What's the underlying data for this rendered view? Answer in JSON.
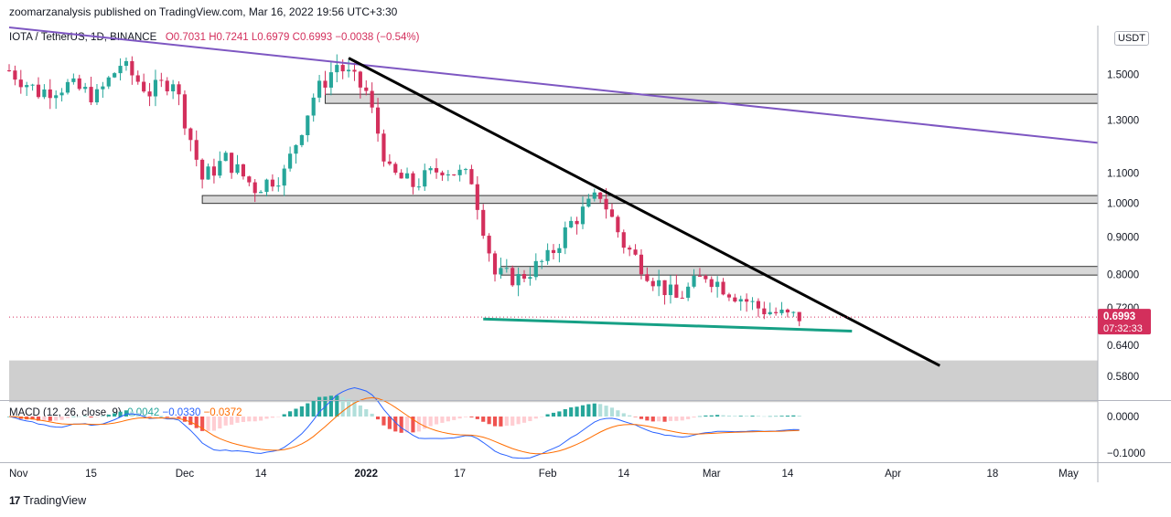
{
  "header": {
    "publisher_line": "zoomarzanalysis published on TradingView.com, Mar 16, 2022 19:56 UTC+3:30"
  },
  "legend": {
    "symbol": "IOTA / TetherUS, 1D, BINANCE",
    "open": "O0.7031",
    "high": "H0.7241",
    "low": "L0.6979",
    "close": "C0.6993",
    "change": "−0.0038 (−0.54%)"
  },
  "price_axis": {
    "currency": "USDT",
    "last_price": "0.6993",
    "countdown": "07:32:33"
  },
  "macd": {
    "title": "MACD (12, 26, close, 9)",
    "hist": "0.0042",
    "macd": "−0.0330",
    "signal": "−0.0372"
  },
  "footer": {
    "brand": "TradingView",
    "logo": "tradingview-logo"
  },
  "colors": {
    "up": "#26a69a",
    "down": "#d32f5c",
    "trendline": "#7e57c2",
    "downtrend": "#000000",
    "support": "#16a085",
    "macd_line": "#2962ff",
    "signal_line": "#ff6d00"
  },
  "chart_data": {
    "type": "candlestick",
    "title": "IOTA / TetherUS, 1D, BINANCE",
    "y_scale": "log",
    "ylim": [
      0.54,
      1.75
    ],
    "x_range": [
      "2021-11-01",
      "2022-05-06"
    ],
    "x_ticks": [
      "Nov",
      "15",
      "Dec",
      "14",
      "2022",
      "17",
      "Feb",
      "14",
      "Mar",
      "14",
      "Apr",
      "18",
      "May"
    ],
    "y_ticks": [
      "1.5000",
      "1.3000",
      "1.1000",
      "1.0000",
      "0.9000",
      "0.8000",
      "0.7200",
      "0.6400",
      "0.5800"
    ],
    "series": [
      {
        "name": "IOTA/USDT close",
        "x": [
          "2021-11-01",
          "2021-11-06",
          "2021-11-11",
          "2021-11-16",
          "2021-11-20",
          "2021-11-25",
          "2021-11-29",
          "2021-12-04",
          "2021-12-08",
          "2021-12-13",
          "2021-12-18",
          "2021-12-23",
          "2021-12-27",
          "2022-01-01",
          "2022-01-05",
          "2022-01-09",
          "2022-01-14",
          "2022-01-19",
          "2022-01-23",
          "2022-01-27",
          "2022-02-01",
          "2022-02-05",
          "2022-02-10",
          "2022-02-14",
          "2022-02-19",
          "2022-02-23",
          "2022-02-28",
          "2022-03-04",
          "2022-03-09",
          "2022-03-14",
          "2022-03-16"
        ],
        "y": [
          1.52,
          1.42,
          1.45,
          1.4,
          1.55,
          1.42,
          1.48,
          1.08,
          1.15,
          1.05,
          1.1,
          1.4,
          1.55,
          1.42,
          1.1,
          1.06,
          1.12,
          1.08,
          0.8,
          0.79,
          0.84,
          0.94,
          1.03,
          0.88,
          0.79,
          0.74,
          0.8,
          0.76,
          0.72,
          0.7,
          0.6993
        ]
      }
    ],
    "horizontal_zones": [
      {
        "low": 1.37,
        "high": 1.41,
        "from": "2021-12-25",
        "to": "2022-05-06"
      },
      {
        "low": 1.0,
        "high": 1.025,
        "from": "2021-12-04",
        "to": "2022-05-06"
      },
      {
        "low": 0.798,
        "high": 0.82,
        "from": "2022-01-24",
        "to": "2022-05-06"
      },
      {
        "low": 0.535,
        "high": 0.61,
        "from": "2021-11-01",
        "to": "2022-05-06"
      }
    ],
    "trendlines": [
      {
        "name": "long-term resistance",
        "from": [
          "2021-11-01",
          1.74
        ],
        "to": [
          "2022-05-06",
          1.21
        ]
      },
      {
        "name": "descending resistance",
        "from": [
          "2021-12-29",
          1.58
        ],
        "to": [
          "2022-04-09",
          0.6
        ]
      },
      {
        "name": "support",
        "from": [
          "2022-01-21",
          0.695
        ],
        "to": [
          "2022-03-25",
          0.669
        ]
      }
    ],
    "macd_panel": {
      "ylim": [
        -0.13,
        0.04
      ],
      "y_ticks": [
        "0.0000",
        "−0.1000"
      ]
    }
  }
}
